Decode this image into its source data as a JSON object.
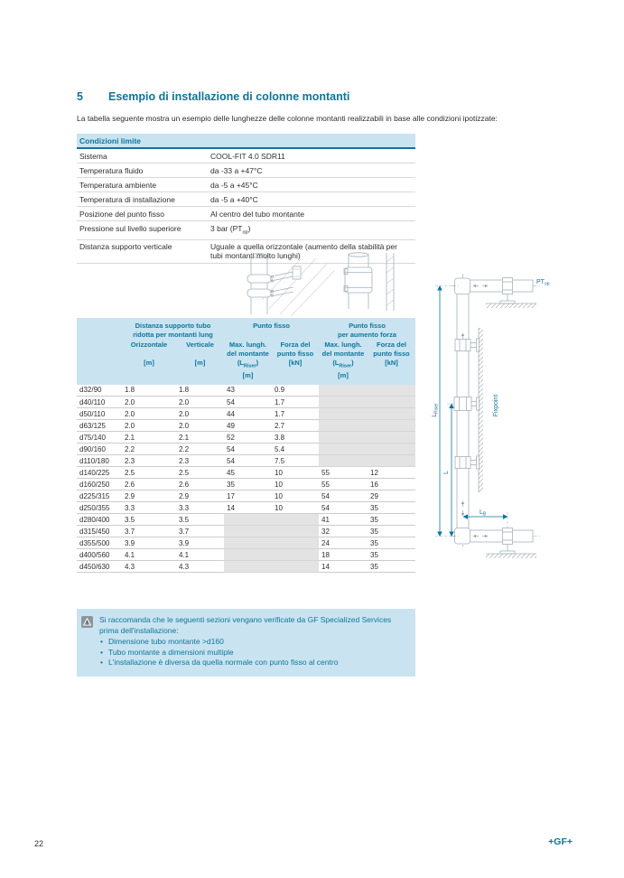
{
  "colors": {
    "accent_teal": "#0e759e",
    "light_blue_bg": "#c9e4f0",
    "gray_cell": "#e3e3e3",
    "diagram_line": "#a4b2bc"
  },
  "header": {
    "section_number": "5",
    "title": "Esempio di installazione di colonne montanti",
    "intro": "La tabella seguente mostra un esempio delle lunghezze delle colonne montanti realizzabili in base alle condizioni ipotizzate:"
  },
  "conditions_table": {
    "title": "Condizioni limite",
    "rows": [
      {
        "label": "Sistema",
        "value": "COOL-FIT 4.0 SDR11"
      },
      {
        "label": "Temperatura fluido",
        "value": "da -33 a +47°C"
      },
      {
        "label": "Temperatura ambiente",
        "value": "da -5 a +45°C"
      },
      {
        "label": "Temperatura di installazione",
        "value": "da -5 a +40°C"
      },
      {
        "label": "Posizione del punto fisso",
        "value": "Al centro del tubo montante"
      },
      {
        "label": "Pressione sul livello superiore",
        "value": {
          "pre": "3 bar (PT",
          "sub": "op",
          "post": ")"
        }
      },
      {
        "label": "Distanza supporto verticale",
        "value": "Uguale a quella orizzontale (aumento della stabilità per tubi montanti molto lunghi)"
      }
    ]
  },
  "main_table": {
    "groups": [
      {
        "line1": "Distanza supporto tubo",
        "line2": "ridotta per montanti lung"
      },
      {
        "line1": "Punto fisso",
        "line2": ""
      },
      {
        "line1": "Punto fisso",
        "line2": "per aumento forza"
      }
    ],
    "columns": [
      {
        "line1": "Orizzontale",
        "line2": "",
        "line3_pre": "[m]",
        "line3_sub": "",
        "line3_post": "",
        "line4": ""
      },
      {
        "line1": "Verticale",
        "line2": "",
        "line3_pre": "[m]",
        "line3_sub": "",
        "line3_post": "",
        "line4": ""
      },
      {
        "line1": "Max. lungh.",
        "line2": "del montante",
        "line3_pre": "(L",
        "line3_sub": "Riser",
        "line3_post": ")",
        "line4": "[m]"
      },
      {
        "line1": "Forza del",
        "line2": "punto fisso",
        "line3_pre": "[kN]",
        "line3_sub": "",
        "line3_post": "",
        "line4": ""
      },
      {
        "line1": "Max. lungh.",
        "line2": "del montante",
        "line3_pre": "(L",
        "line3_sub": "Riser",
        "line3_post": ")",
        "line4": "[m]"
      },
      {
        "line1": "Forza del",
        "line2": "punto fisso",
        "line3_pre": "[kN]",
        "line3_sub": "",
        "line3_post": "",
        "line4": ""
      }
    ],
    "rows": [
      {
        "size": "d32/90",
        "values": [
          "1.8",
          "1.8",
          "43",
          "0.9",
          null,
          null
        ]
      },
      {
        "size": "d40/110",
        "values": [
          "2.0",
          "2.0",
          "54",
          "1.7",
          null,
          null
        ]
      },
      {
        "size": "d50/110",
        "values": [
          "2.0",
          "2.0",
          "44",
          "1.7",
          null,
          null
        ]
      },
      {
        "size": "d63/125",
        "values": [
          "2.0",
          "2.0",
          "49",
          "2.7",
          null,
          null
        ]
      },
      {
        "size": "d75/140",
        "values": [
          "2.1",
          "2.1",
          "52",
          "3.8",
          null,
          null
        ]
      },
      {
        "size": "d90/160",
        "values": [
          "2.2",
          "2.2",
          "54",
          "5.4",
          null,
          null
        ]
      },
      {
        "size": "d110/180",
        "values": [
          "2.3",
          "2.3",
          "54",
          "7.5",
          null,
          null
        ]
      },
      {
        "size": "d140/225",
        "values": [
          "2.5",
          "2.5",
          "45",
          "10",
          "55",
          "12"
        ]
      },
      {
        "size": "d160/250",
        "values": [
          "2.6",
          "2.6",
          "35",
          "10",
          "55",
          "16"
        ]
      },
      {
        "size": "d225/315",
        "values": [
          "2.9",
          "2.9",
          "17",
          "10",
          "54",
          "29"
        ]
      },
      {
        "size": "d250/355",
        "values": [
          "3.3",
          "3.3",
          "14",
          "10",
          "54",
          "35"
        ]
      },
      {
        "size": "d280/400",
        "values": [
          "3.5",
          "3.5",
          null,
          null,
          "41",
          "35"
        ]
      },
      {
        "size": "d315/450",
        "values": [
          "3.7",
          "3.7",
          null,
          null,
          "32",
          "35"
        ]
      },
      {
        "size": "d355/500",
        "values": [
          "3.9",
          "3.9",
          null,
          null,
          "24",
          "35"
        ]
      },
      {
        "size": "d400/560",
        "values": [
          "4.1",
          "4.1",
          null,
          null,
          "18",
          "35"
        ]
      },
      {
        "size": "d450/630",
        "values": [
          "4.3",
          "4.3",
          null,
          null,
          "14",
          "35"
        ]
      }
    ]
  },
  "diagram": {
    "ptop_main": "PT",
    "ptop_sub": "op",
    "lriser_main": "L",
    "lriser_sub": "Riser",
    "l_label": "L",
    "lb_main": "L",
    "lb_sub": "B",
    "fixpoint_label": "Fixpoint"
  },
  "note": {
    "line1": "Si raccomanda che le seguenti sezioni vengano verificate da GF Specialized Services",
    "line2": "prima dell'installazione:",
    "bullets": [
      "Dimensione tubo montante >d160",
      "Tubo montante a dimensioni multiple",
      "L'installazione è diversa da quella normale con punto fisso al centro"
    ]
  },
  "footer": {
    "page_number": "22",
    "logo": "+GF+"
  }
}
